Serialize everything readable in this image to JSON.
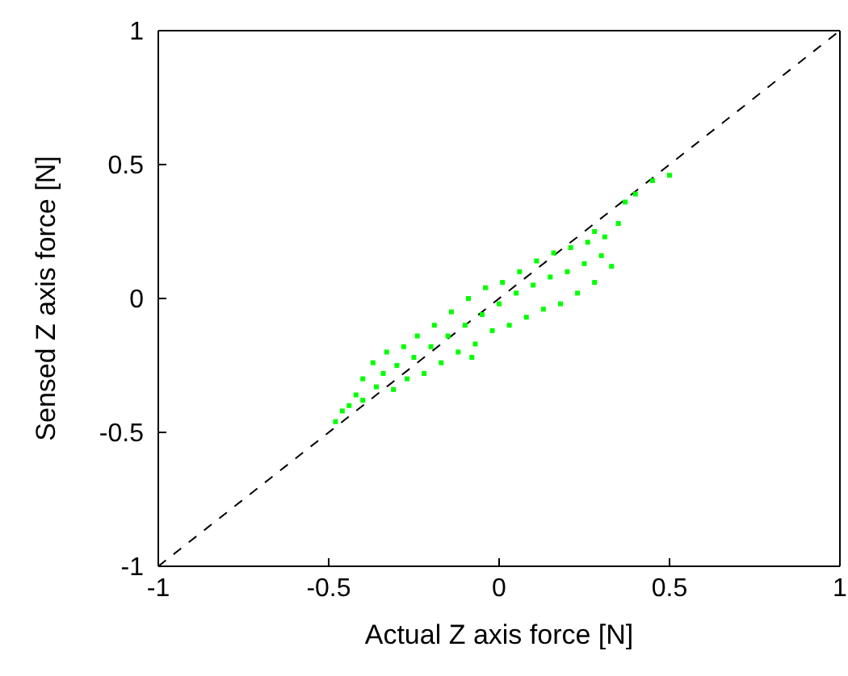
{
  "chart_data": {
    "type": "scatter",
    "xlabel": "Actual Z axis force [N]",
    "ylabel": "Sensed Z axis force [N]",
    "xlim": [
      -1,
      1
    ],
    "ylim": [
      -1,
      1
    ],
    "xticks": [
      -1,
      -0.5,
      0,
      0.5,
      1
    ],
    "yticks": [
      -1,
      -0.5,
      0,
      0.5,
      1
    ],
    "marker": "square",
    "series": [
      {
        "color": "#00ff00",
        "x": [
          -0.48,
          -0.46,
          -0.44,
          -0.42,
          -0.4,
          -0.4,
          -0.37,
          -0.36,
          -0.34,
          -0.33,
          -0.31,
          -0.3,
          -0.28,
          -0.27,
          -0.25,
          -0.24,
          -0.22,
          -0.2,
          -0.19,
          -0.17,
          -0.15,
          -0.14,
          -0.12,
          -0.1,
          -0.09,
          -0.08,
          -0.07,
          -0.05,
          -0.04,
          -0.02,
          0,
          0.01,
          0.03,
          0.05,
          0.06,
          0.08,
          0.1,
          0.11,
          0.13,
          0.15,
          0.16,
          0.18,
          0.2,
          0.21,
          0.23,
          0.25,
          0.26,
          0.28,
          0.28,
          0.3,
          0.31,
          0.33,
          0.35,
          0.37,
          0.4,
          0.45,
          0.5
        ],
        "values": [
          -0.46,
          -0.42,
          -0.4,
          -0.36,
          -0.3,
          -0.38,
          -0.24,
          -0.33,
          -0.28,
          -0.2,
          -0.34,
          -0.25,
          -0.18,
          -0.3,
          -0.22,
          -0.14,
          -0.28,
          -0.18,
          -0.1,
          -0.24,
          -0.14,
          -0.05,
          -0.2,
          -0.1,
          0,
          -0.22,
          -0.17,
          -0.06,
          0.04,
          -0.12,
          -0.02,
          0.06,
          -0.1,
          0.02,
          0.1,
          -0.07,
          0.05,
          0.14,
          -0.04,
          0.08,
          0.17,
          -0.02,
          0.1,
          0.19,
          0.02,
          0.13,
          0.21,
          0.06,
          0.25,
          0.16,
          0.23,
          0.12,
          0.28,
          0.36,
          0.39,
          0.44,
          0.46
        ]
      },
      {
        "type": "line",
        "color": "#000000",
        "line_style": "dashed",
        "marker": "none",
        "x": [
          -1,
          1
        ],
        "values": [
          -1,
          1
        ]
      }
    ]
  }
}
